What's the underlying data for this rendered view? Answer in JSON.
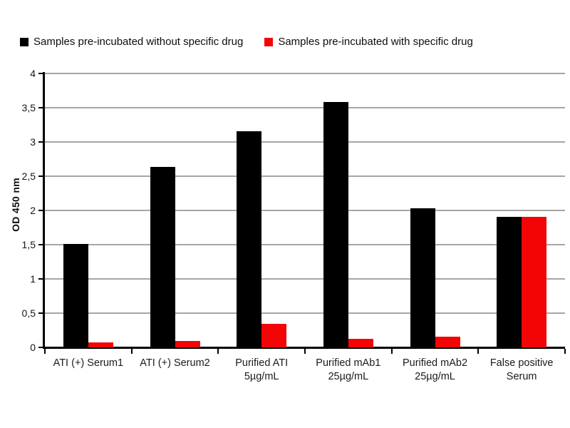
{
  "legend": {
    "items": [
      {
        "label": "Samples pre-incubated without specific drug",
        "color": "#000000"
      },
      {
        "label": "Samples pre-incubated with specific drug",
        "color": "#f30505"
      }
    ]
  },
  "chart_data": {
    "type": "bar",
    "title": "",
    "xlabel": "",
    "ylabel": "OD 450 nm",
    "ylim": [
      0,
      4
    ],
    "grid": true,
    "legend_position": "top-left",
    "decimal_separator": ",",
    "categories": [
      "ATI (+) Serum1",
      "ATI (+) Serum2",
      "Purified ATI\n5µg/mL",
      "Purified mAb1\n25µg/mL",
      "Purified mAb2\n25µg/mL",
      "False positive\nSerum"
    ],
    "series": [
      {
        "name": "Samples pre-incubated without specific drug",
        "color": "#000000",
        "values": [
          1.51,
          2.64,
          3.16,
          3.58,
          2.03,
          1.91
        ]
      },
      {
        "name": "Samples pre-incubated with specific drug",
        "color": "#f30505",
        "values": [
          0.07,
          0.09,
          0.34,
          0.13,
          0.16,
          1.91
        ]
      }
    ],
    "ytick_values": [
      0,
      0.5,
      1,
      1.5,
      2,
      2.5,
      3,
      3.5,
      4
    ],
    "ytick_labels": [
      "0",
      "0,5",
      "1",
      "1,5",
      "2",
      "2,5",
      "3",
      "3,5",
      "4"
    ],
    "colors": {
      "grid": "#a6a6a6",
      "axis": "#000000",
      "text": "#1a1a1a"
    }
  }
}
